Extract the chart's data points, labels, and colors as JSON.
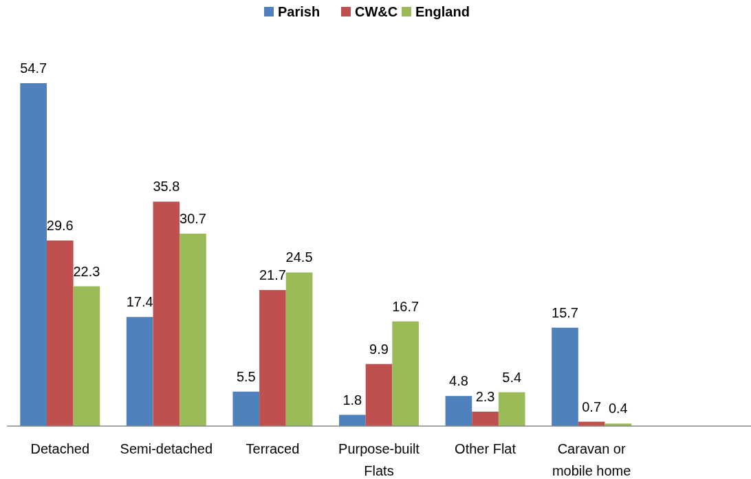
{
  "chart_data": {
    "type": "bar",
    "categories": [
      "Detached",
      "Semi-detached",
      "Terraced",
      "Purpose-built Flats",
      "Other Flat",
      "Caravan or mobile home",
      null
    ],
    "series": [
      {
        "name": "Parish",
        "color": "#4f81bd",
        "values": [
          54.7,
          17.4,
          5.5,
          1.8,
          4.8,
          15.7,
          null
        ]
      },
      {
        "name": "CW&C",
        "color": "#c0504d",
        "values": [
          29.6,
          35.8,
          21.7,
          9.9,
          2.3,
          0.7,
          null
        ]
      },
      {
        "name": "England",
        "color": "#9bbb59",
        "values": [
          22.3,
          30.7,
          24.5,
          16.7,
          5.4,
          0.4,
          null
        ]
      }
    ],
    "data_labels": true,
    "legend": "top"
  }
}
